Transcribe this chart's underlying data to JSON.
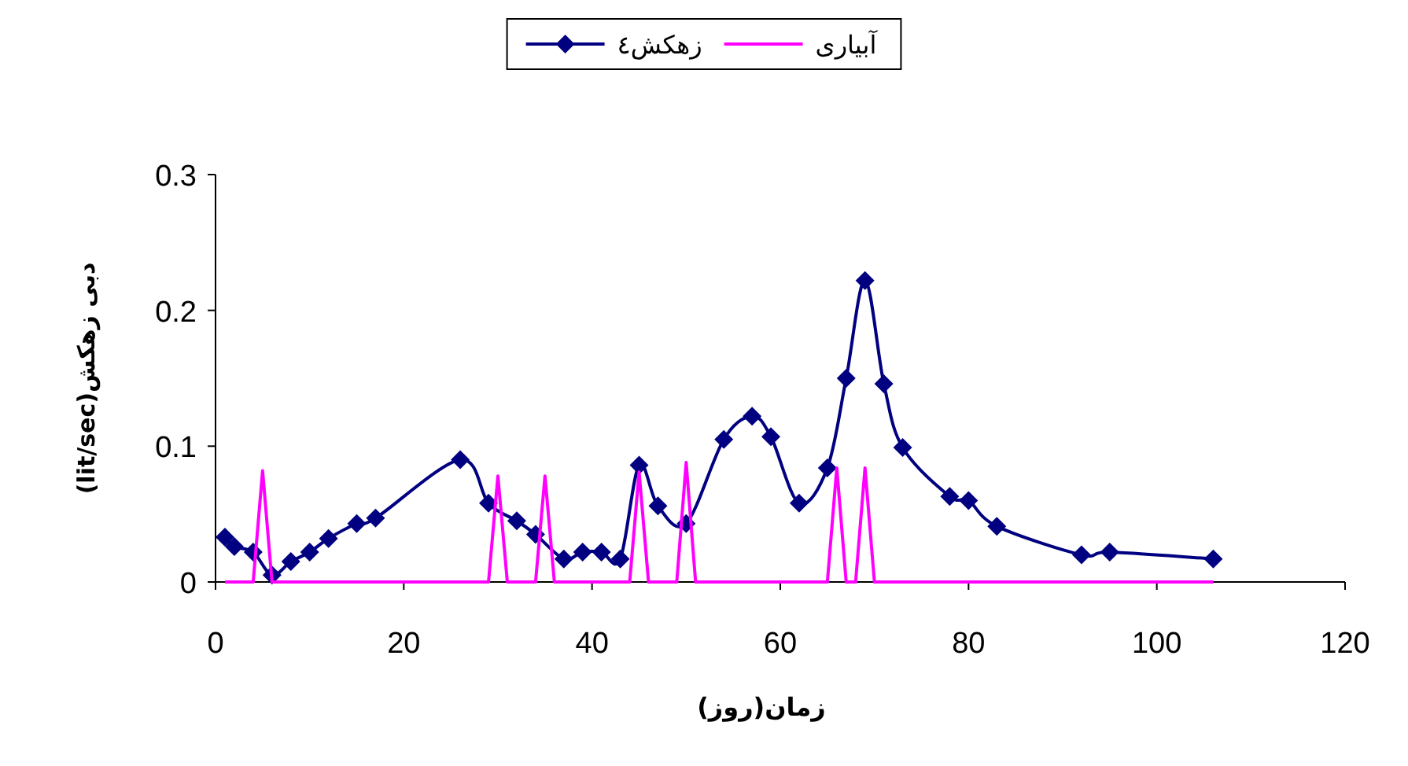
{
  "chart_data": {
    "type": "line",
    "xlabel": "زمان(روز)",
    "ylabel": "دبی زهکش(lit/sec)",
    "xlim": [
      0,
      120
    ],
    "xticks": [
      0,
      20,
      40,
      60,
      80,
      100,
      120
    ],
    "ylim": [
      0,
      0.3
    ],
    "yticks": [
      0,
      0.1,
      0.2,
      0.3
    ],
    "legend": "top",
    "grid": false,
    "series": [
      {
        "name": "زهکش٤",
        "color": "#000080",
        "marker": "diamond",
        "x": [
          1,
          2,
          4,
          6,
          8,
          10,
          12,
          15,
          17,
          26,
          29,
          32,
          34,
          37,
          39,
          41,
          43,
          45,
          47,
          50,
          54,
          57,
          59,
          62,
          65,
          67,
          69,
          71,
          73,
          78,
          80,
          83,
          92,
          95,
          106
        ],
        "values": [
          0.033,
          0.026,
          0.022,
          0.005,
          0.015,
          0.022,
          0.032,
          0.043,
          0.047,
          0.09,
          0.058,
          0.045,
          0.035,
          0.017,
          0.022,
          0.022,
          0.017,
          0.086,
          0.056,
          0.043,
          0.105,
          0.122,
          0.107,
          0.058,
          0.084,
          0.15,
          0.222,
          0.146,
          0.099,
          0.063,
          0.06,
          0.041,
          0.02,
          0.022,
          0.017
        ]
      },
      {
        "name": "آبیاری",
        "color": "#ff00ff",
        "marker": "none",
        "x": [
          1,
          4,
          5,
          6,
          29,
          30,
          31,
          34,
          35,
          36,
          44,
          45,
          46,
          49,
          50,
          51,
          65,
          66,
          67,
          68,
          69,
          70,
          106
        ],
        "values": [
          0,
          0,
          0.082,
          0,
          0,
          0.078,
          0,
          0,
          0.078,
          0,
          0,
          0.081,
          0,
          0,
          0.088,
          0,
          0,
          0.084,
          0,
          0,
          0.084,
          0,
          0
        ]
      }
    ]
  }
}
